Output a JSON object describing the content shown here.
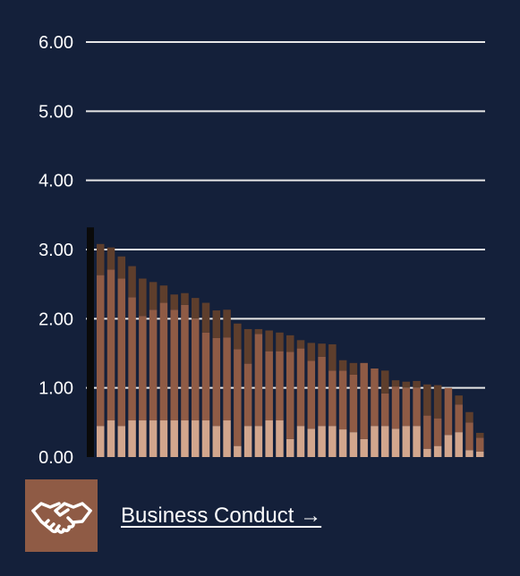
{
  "chart_data": {
    "type": "bar",
    "stacked": true,
    "ylim": [
      0,
      6
    ],
    "ytick_labels": [
      "0.00",
      "1.00",
      "2.00",
      "3.00",
      "4.00",
      "5.00",
      "6.00"
    ],
    "grid": true,
    "highlight": {
      "value": 3.32,
      "color": "#0a0a0a"
    },
    "series": [
      {
        "color": "#d2a68d",
        "values": [
          0.45,
          0.53,
          0.45,
          0.53,
          0.53,
          0.53,
          0.53,
          0.53,
          0.53,
          0.53,
          0.53,
          0.45,
          0.53,
          0.16,
          0.45,
          0.45,
          0.53,
          0.53,
          0.26,
          0.45,
          0.41,
          0.45,
          0.45,
          0.4,
          0.36,
          0.26,
          0.45,
          0.45,
          0.41,
          0.45,
          0.45,
          0.12,
          0.16,
          0.32,
          0.36,
          0.1,
          0.08
        ]
      },
      {
        "color": "#8f5b45",
        "values": [
          2.18,
          2.18,
          2.13,
          1.78,
          1.51,
          1.6,
          1.7,
          1.6,
          1.67,
          1.47,
          1.27,
          1.27,
          1.2,
          1.4,
          0.9,
          1.33,
          1.0,
          1.0,
          1.26,
          1.12,
          0.98,
          1.0,
          0.8,
          0.85,
          0.83,
          1.1,
          0.83,
          0.47,
          0.61,
          0.55,
          0.55,
          0.48,
          0.4,
          0.68,
          0.4,
          0.4,
          0.2
        ]
      },
      {
        "color": "#5e3e2c",
        "values": [
          0.45,
          0.32,
          0.32,
          0.45,
          0.54,
          0.4,
          0.25,
          0.22,
          0.17,
          0.3,
          0.43,
          0.4,
          0.4,
          0.37,
          0.5,
          0.07,
          0.3,
          0.27,
          0.24,
          0.12,
          0.26,
          0.19,
          0.38,
          0.15,
          0.17,
          0.0,
          0.0,
          0.33,
          0.09,
          0.09,
          0.1,
          0.45,
          0.48,
          0.0,
          0.13,
          0.15,
          0.07
        ]
      }
    ]
  },
  "footer": {
    "icon": "handshake-icon",
    "icon_bg": "#8f5b45",
    "link_label": "Business Conduct →"
  }
}
